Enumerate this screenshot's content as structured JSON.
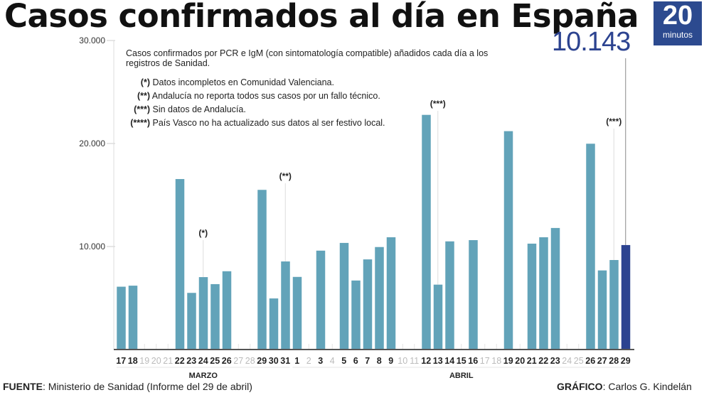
{
  "title": "Casos confirmados al día en España",
  "logo": {
    "number": "20",
    "word": "minutos"
  },
  "highlight_label": "10.143",
  "notes": {
    "intro": "Casos confirmados por PCR e IgM (con sintomatología compatible) añadidos cada día a los registros de Sanidad.",
    "items": [
      {
        "mark": "(*)",
        "text": "Datos incompletos en Comunidad Valenciana."
      },
      {
        "mark": "(**)",
        "text": "Andalucía no reporta todos sus casos por un fallo técnico."
      },
      {
        "mark": "(***)",
        "text": "Sin datos de Andalucía."
      },
      {
        "mark": "(****)",
        "text": "País Vasco no ha actualizado sus datos al ser festivo local."
      }
    ]
  },
  "footer": {
    "source_label": "FUENTE",
    "source": ": Ministerio de Sanidad (Informe del 29 de abril)",
    "credit_label": "GRÁFICO",
    "credit": ": Carlos G. Kindelán"
  },
  "colors": {
    "bar": "#62a3b9",
    "highlight": "#2c4390",
    "muted": "#bbbbbb"
  },
  "chart_data": {
    "type": "bar",
    "title": "Casos confirmados al día en España",
    "ylim": [
      0,
      30000
    ],
    "yticks": [
      {
        "v": 10000,
        "label": "10.000"
      },
      {
        "v": 20000,
        "label": "20.000"
      },
      {
        "v": 30000,
        "label": "30.000"
      }
    ],
    "months": [
      {
        "label": "MARZO",
        "from": 0,
        "to": 14
      },
      {
        "label": "ABRIL",
        "from": 15,
        "to": 43
      }
    ],
    "categories": [
      "17",
      "18",
      "19",
      "20",
      "21",
      "22",
      "23",
      "24",
      "25",
      "26",
      "27",
      "28",
      "29",
      "30",
      "31",
      "1",
      "2",
      "3",
      "4",
      "5",
      "6",
      "7",
      "8",
      "9",
      "10",
      "11",
      "12",
      "13",
      "14",
      "15",
      "16",
      "17",
      "18",
      "19",
      "20",
      "21",
      "22",
      "23",
      "24",
      "25",
      "26",
      "27",
      "28",
      "29"
    ],
    "values": [
      6100,
      6200,
      null,
      null,
      null,
      16550,
      5500,
      7030,
      6350,
      7600,
      null,
      null,
      15500,
      4960,
      8550,
      7050,
      null,
      9600,
      null,
      10350,
      6700,
      8750,
      9950,
      10900,
      null,
      null,
      22780,
      6300,
      10500,
      null,
      10620,
      null,
      null,
      21200,
      null,
      10280,
      10900,
      11800,
      null,
      null,
      19980,
      7680,
      8690,
      10143
    ],
    "muted_labels": [
      2,
      3,
      4,
      10,
      11,
      16,
      18,
      24,
      25,
      31,
      32,
      38,
      39
    ],
    "annotations": [
      {
        "index": 7,
        "label": "(*)"
      },
      {
        "index": 14,
        "label": "(**)"
      },
      {
        "index": 27,
        "label": "(***)"
      },
      {
        "index": 42,
        "label": "(***)"
      }
    ],
    "highlight_index": 43
  }
}
